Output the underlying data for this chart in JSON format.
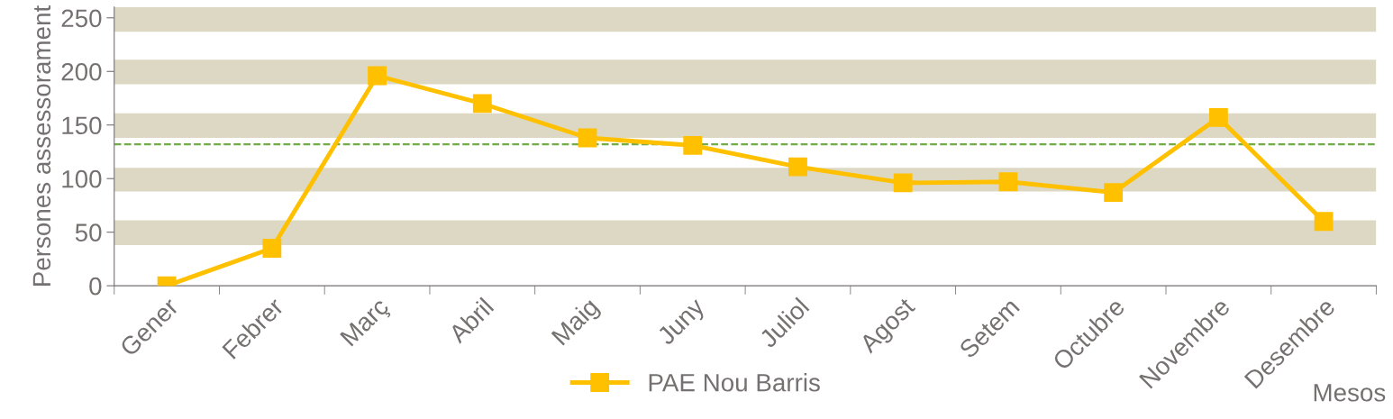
{
  "chart_data": {
    "type": "line",
    "xlabel": "Mesos",
    "ylabel": "Persones assessorament",
    "categories": [
      "Gener",
      "Febrer",
      "Març",
      "Abril",
      "Maig",
      "Juny",
      "Juliol",
      "Agost",
      "Setem",
      "Octubre",
      "Novembre",
      "Desembre"
    ],
    "series": [
      {
        "name": "PAE Nou Barris",
        "color": "#ffc000",
        "values": [
          0,
          35,
          196,
          170,
          138,
          131,
          111,
          96,
          97,
          87,
          157,
          60
        ]
      }
    ],
    "ylim": [
      0,
      260
    ],
    "yticks": [
      0,
      50,
      100,
      150,
      200,
      250
    ],
    "ref_lines": [
      {
        "axis": "y",
        "value": 132,
        "color": "#70ad47",
        "line_style": "dashed"
      }
    ],
    "bands": [
      {
        "axis": "y",
        "from": 38,
        "to": 61,
        "color": "#ddd8c4"
      },
      {
        "axis": "y",
        "from": 88,
        "to": 110,
        "color": "#ddd8c4"
      },
      {
        "axis": "y",
        "from": 138,
        "to": 161,
        "color": "#ddd8c4"
      },
      {
        "axis": "y",
        "from": 188,
        "to": 211,
        "color": "#ddd8c4"
      },
      {
        "axis": "y",
        "from": 237,
        "to": 260,
        "color": "#ddd8c4"
      }
    ],
    "marker": "square",
    "line_style": "solid",
    "grid": false,
    "legend": "bottom"
  }
}
